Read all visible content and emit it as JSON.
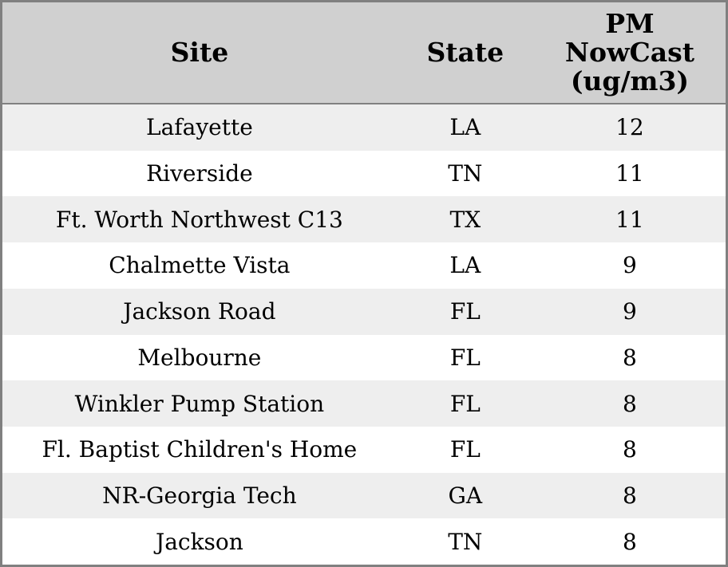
{
  "chart_data": {
    "type": "table",
    "columns": [
      "Site",
      "State",
      "PM NowCast (ug/m3)"
    ],
    "column_display": [
      "Site",
      "State",
      "PM\nNowCast\n(ug/m3)"
    ],
    "rows": [
      [
        "Lafayette",
        "LA",
        12
      ],
      [
        "Riverside",
        "TN",
        11
      ],
      [
        "Ft. Worth Northwest C13",
        "TX",
        11
      ],
      [
        "Chalmette Vista",
        "LA",
        9
      ],
      [
        "Jackson Road",
        "FL",
        9
      ],
      [
        "Melbourne",
        "FL",
        8
      ],
      [
        "Winkler Pump Station",
        "FL",
        8
      ],
      [
        "Fl. Baptist Children's Home",
        "FL",
        8
      ],
      [
        "NR-Georgia Tech",
        "GA",
        8
      ],
      [
        "Jackson",
        "TN",
        8
      ]
    ],
    "layout": {
      "grid": "off",
      "row_striping": true,
      "alignment": "center"
    }
  },
  "style": {
    "header_bg": "#d0d0d0",
    "stripe_row_bg": "#eeeeee",
    "plain_row_bg": "#ffffff",
    "border_color": "#808080",
    "text_color": "#000000"
  }
}
